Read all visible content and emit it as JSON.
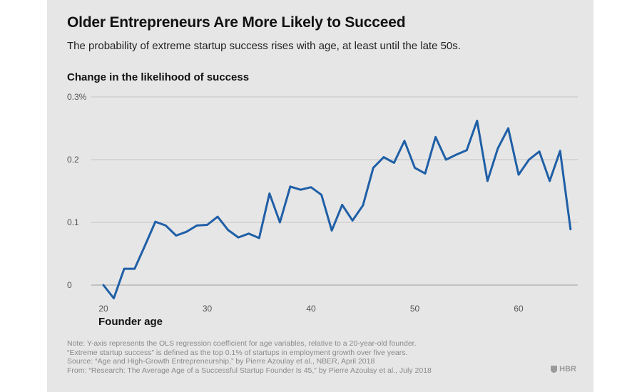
{
  "header": {
    "title": "Older Entrepreneurs Are More Likely to Succeed",
    "subtitle": "The probability of extreme startup success rises with age, at least until the late 50s."
  },
  "notes": [
    "Note: Y-axis represents the OLS regression coefficient for age variables, relative to a 20-year-old founder.",
    "“Extreme startup success” is defined as the top 0.1% of startups in employment growth over five years.",
    "Source: “Age and High-Growth Entrepreneurship,” by Pierre Azoulay et al., NBER, April 2018",
    "From: “Research: The Average Age of a Successful Startup Founder Is 45,” by Pierre Azoulay et al., July 2018"
  ],
  "brand": {
    "label": "HBR",
    "icon": "shield-icon"
  },
  "colors": {
    "line": "#1f5fa6",
    "background": "#e6e6e6",
    "grid": "#c4c4c4"
  },
  "chart_data": {
    "type": "line",
    "title": "Older Entrepreneurs Are More Likely to Succeed",
    "subtitle": "The probability of extreme startup success rises with age, at least until the late 50s.",
    "xlabel": "Founder age",
    "ylabel": "Change in the likelihood of success",
    "xlim": [
      20,
      65
    ],
    "ylim": [
      -0.03,
      0.3
    ],
    "xticks": [
      20,
      30,
      40,
      50,
      60
    ],
    "xtick_labels": [
      "20",
      "30",
      "40",
      "50",
      "60"
    ],
    "yticks": [
      0,
      0.1,
      0.2,
      0.3
    ],
    "ytick_labels": [
      "0",
      "0.1",
      "0.2",
      "0.3%"
    ],
    "grid": "horizontal",
    "series": [
      {
        "x": [
          20,
          21,
          22,
          23,
          24,
          25,
          26,
          27,
          28,
          29,
          30,
          31,
          32,
          33,
          34,
          35,
          36,
          37,
          38,
          39,
          40,
          41,
          42,
          43,
          44,
          45,
          46,
          47,
          48,
          49,
          50,
          51,
          52,
          53,
          54,
          55,
          56,
          57,
          58,
          59,
          60,
          61,
          62,
          63,
          64,
          65
        ],
        "values": [
          0.0,
          -0.021,
          0.026,
          0.026,
          0.063,
          0.101,
          0.095,
          0.079,
          0.085,
          0.095,
          0.096,
          0.109,
          0.088,
          0.076,
          0.082,
          0.075,
          0.146,
          0.1,
          0.157,
          0.152,
          0.156,
          0.144,
          0.087,
          0.128,
          0.103,
          0.127,
          0.187,
          0.204,
          0.195,
          0.23,
          0.187,
          0.178,
          0.236,
          0.2,
          0.208,
          0.215,
          0.262,
          0.166,
          0.218,
          0.25,
          0.176,
          0.2,
          0.213,
          0.166,
          0.214,
          0.089
        ]
      }
    ]
  }
}
